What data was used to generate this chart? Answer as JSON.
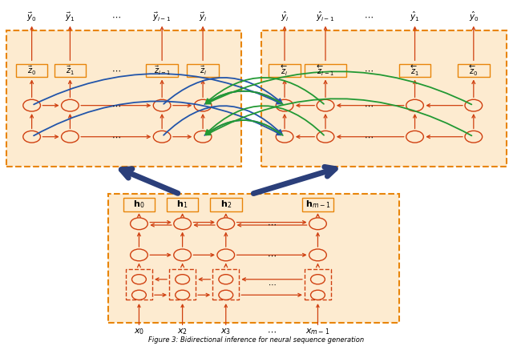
{
  "bg_color": "#FFFFFF",
  "box_fill": "#FDEBD0",
  "box_edge": "#E8850A",
  "node_fill": "#FDEBD0",
  "node_edge": "#D04010",
  "arrow_red": "#D04010",
  "arrow_blue": "#2255AA",
  "arrow_green": "#229933",
  "arrow_dark_blue": "#2B3F7A",
  "caption": "Figure 3: Bidirectional inference for neural sequence generation"
}
